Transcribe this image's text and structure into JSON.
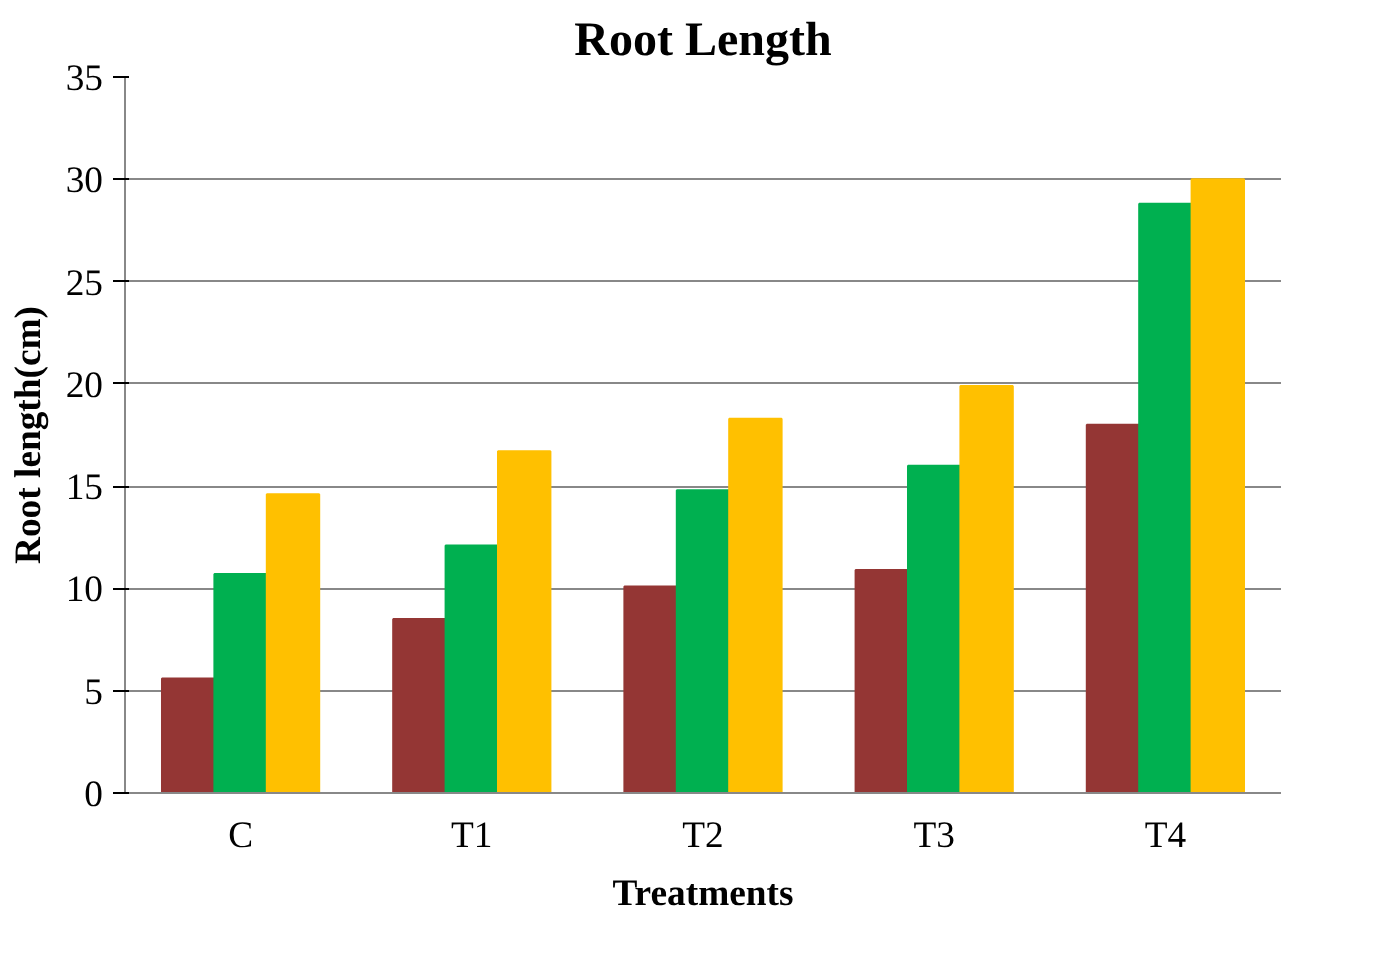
{
  "chart_data": {
    "type": "bar",
    "title": "Root Length",
    "xlabel": "Treatments",
    "ylabel": "Root length(cm)",
    "categories": [
      "C",
      "T1",
      "T2",
      "T3",
      "T4"
    ],
    "series": [
      {
        "color": "#943634",
        "values": [
          5.6,
          8.5,
          10.1,
          10.9,
          18.0
        ]
      },
      {
        "color": "#00b050",
        "values": [
          10.7,
          12.1,
          14.8,
          16.0,
          28.8
        ]
      },
      {
        "color": "#ffc000",
        "values": [
          14.6,
          16.7,
          18.3,
          19.9,
          30.0
        ]
      }
    ],
    "ylim": [
      0,
      35
    ],
    "yticks": [
      0,
      5,
      10,
      15,
      20,
      25,
      30,
      35
    ],
    "grid": "y"
  }
}
